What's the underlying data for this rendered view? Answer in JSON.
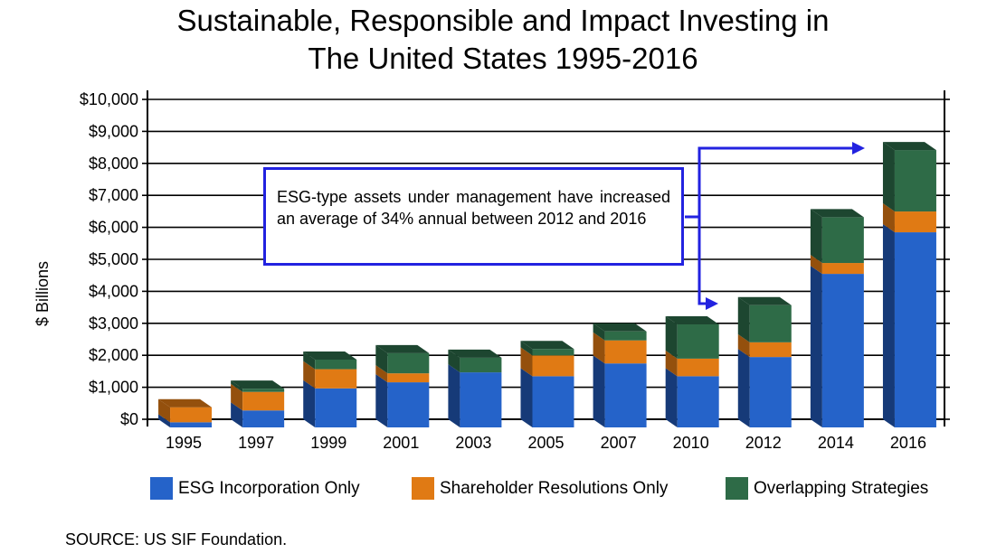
{
  "page_title_lines": [
    "Sustainable, Responsible and Impact Investing in",
    "The United States 1995-2016"
  ],
  "source": "SOURCE: US SIF Foundation.",
  "callout": "ESG-type assets under management have increased an average of 34% annual between 2012 and 2016",
  "colors": {
    "esg": "#2563c9",
    "esg_side": "#163a78",
    "shareholder": "#e07a14",
    "shareholder_side": "#94500d",
    "overlap": "#2e6b47",
    "overlap_side": "#1d4630",
    "arrow": "#2222e0"
  },
  "chart_data": {
    "type": "bar",
    "stacked": true,
    "title": "Sustainable, Responsible and Impact Investing in The United States 1995-2016",
    "ylabel": "$ Billions",
    "xlabel": "",
    "ylim": [
      0,
      10000
    ],
    "y_ticks": [
      "$0",
      "$1,000",
      "$2,000",
      "$3,000",
      "$4,000",
      "$5,000",
      "$6,000",
      "$7,000",
      "$8,000",
      "$9,000",
      "$10,000"
    ],
    "categories": [
      "1995",
      "1997",
      "1999",
      "2001",
      "2003",
      "2005",
      "2007",
      "2010",
      "2012",
      "2014",
      "2016"
    ],
    "series": [
      {
        "name": "ESG Incorporation Only",
        "values": [
          160,
          530,
          1220,
          1410,
          1720,
          1600,
          2000,
          1600,
          2200,
          4800,
          6100
        ]
      },
      {
        "name": "Shareholder Resolutions Only",
        "values": [
          470,
          580,
          600,
          280,
          0,
          650,
          720,
          550,
          460,
          340,
          650
        ]
      },
      {
        "name": "Overlapping Strategies",
        "values": [
          0,
          100,
          300,
          630,
          460,
          200,
          280,
          1070,
          1160,
          1430,
          1920
        ]
      }
    ],
    "grid": true,
    "legend_position": "bottom"
  }
}
